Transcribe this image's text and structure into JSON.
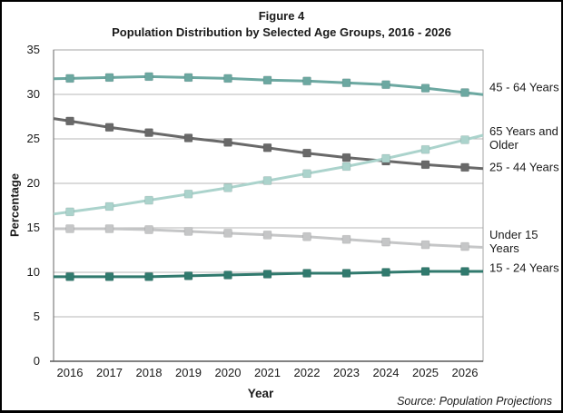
{
  "figure": {
    "title_line1": "Figure 4",
    "title_line2": "Population Distribution by Selected Age Groups, 2016 - 2026",
    "source_note": "Source: Population Projections"
  },
  "chart_data": {
    "type": "line",
    "title": "Figure 4 — Population Distribution by Selected Age Groups, 2016 - 2026",
    "xlabel": "Year",
    "ylabel": "Percentage",
    "x": [
      2016,
      2017,
      2018,
      2019,
      2020,
      2021,
      2022,
      2023,
      2024,
      2025,
      2026
    ],
    "ylim": [
      0,
      35
    ],
    "y_ticks": [
      0,
      5,
      10,
      15,
      20,
      25,
      30,
      35
    ],
    "grid": true,
    "legend_position": "right-outside-labels",
    "series": [
      {
        "name": "45 - 64 Years",
        "label_lines": [
          "45 - 64 Years"
        ],
        "color": "#6CA8A1",
        "values": [
          31.8,
          31.9,
          32.0,
          31.9,
          31.8,
          31.6,
          31.5,
          31.3,
          31.1,
          30.7,
          30.2
        ]
      },
      {
        "name": "25 - 44 Years",
        "label_lines": [
          "25 - 44 Years"
        ],
        "color": "#696969",
        "values": [
          27.0,
          26.3,
          25.7,
          25.1,
          24.6,
          24.0,
          23.4,
          22.9,
          22.5,
          22.1,
          21.8
        ]
      },
      {
        "name": "65 Years and Older",
        "label_lines": [
          "65 Years and",
          "Older"
        ],
        "color": "#ABD3CC",
        "values": [
          16.8,
          17.4,
          18.1,
          18.8,
          19.5,
          20.3,
          21.1,
          21.9,
          22.8,
          23.8,
          24.9
        ]
      },
      {
        "name": "Under 15 Years",
        "label_lines": [
          "Under 15",
          "Years"
        ],
        "color": "#C5C6C7",
        "values": [
          14.9,
          14.9,
          14.8,
          14.6,
          14.4,
          14.2,
          14.0,
          13.7,
          13.4,
          13.1,
          12.9
        ]
      },
      {
        "name": "15 - 24 Years",
        "label_lines": [
          "15 - 24 Years"
        ],
        "color": "#317A6E",
        "values": [
          9.5,
          9.5,
          9.5,
          9.6,
          9.7,
          9.8,
          9.9,
          9.9,
          10.0,
          10.1,
          10.1
        ]
      }
    ]
  }
}
